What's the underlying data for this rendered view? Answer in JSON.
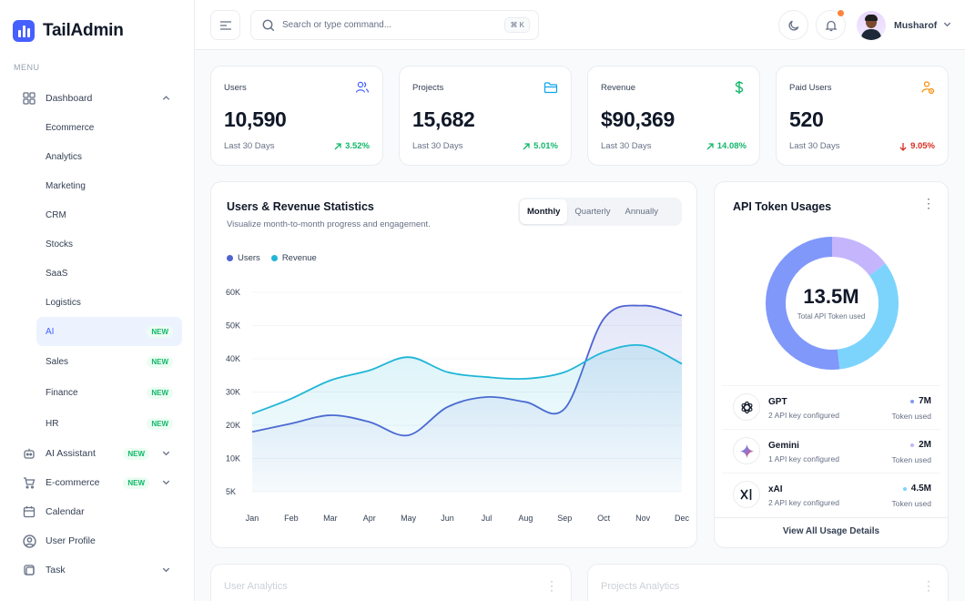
{
  "brand": {
    "name": "TailAdmin"
  },
  "sidebar": {
    "menu_label": "MENU",
    "dashboard": {
      "label": "Dashboard",
      "items": [
        {
          "label": "Ecommerce"
        },
        {
          "label": "Analytics"
        },
        {
          "label": "Marketing"
        },
        {
          "label": "CRM"
        },
        {
          "label": "Stocks"
        },
        {
          "label": "SaaS"
        },
        {
          "label": "Logistics"
        },
        {
          "label": "AI",
          "badge": "NEW",
          "active": true
        },
        {
          "label": "Sales",
          "badge": "NEW"
        },
        {
          "label": "Finance",
          "badge": "NEW"
        },
        {
          "label": "HR",
          "badge": "NEW"
        }
      ]
    },
    "items": [
      {
        "label": "AI Assistant",
        "badge": "NEW",
        "icon": "robot-icon"
      },
      {
        "label": "E-commerce",
        "badge": "NEW",
        "icon": "cart-icon"
      },
      {
        "label": "Calendar",
        "icon": "calendar-icon"
      },
      {
        "label": "User Profile",
        "icon": "user-circle-icon"
      },
      {
        "label": "Task",
        "icon": "task-icon"
      }
    ]
  },
  "header": {
    "search_placeholder": "Search or type command...",
    "shortcut": "⌘ K",
    "user_name": "Musharof"
  },
  "stats": [
    {
      "label": "Users",
      "value": "10,590",
      "period": "Last 30 Days",
      "change": "3.52%",
      "trend": "up",
      "icon": "users-icon",
      "color": "#465fff"
    },
    {
      "label": "Projects",
      "value": "15,682",
      "period": "Last 30 Days",
      "change": "5.01%",
      "trend": "up",
      "icon": "folder-icon",
      "color": "#0ba5ec"
    },
    {
      "label": "Revenue",
      "value": "$90,369",
      "period": "Last 30 Days",
      "change": "14.08%",
      "trend": "up",
      "icon": "dollar-icon",
      "color": "#12b76a"
    },
    {
      "label": "Paid Users",
      "value": "520",
      "period": "Last 30 Days",
      "change": "9.05%",
      "trend": "down",
      "icon": "paid-user-icon",
      "color": "#f79009"
    }
  ],
  "statistics": {
    "title": "Users & Revenue Statistics",
    "subtitle": "Visualize month-to-month progress and engagement.",
    "tabs": [
      "Monthly",
      "Quarterly",
      "Annually"
    ],
    "active_tab": "Monthly"
  },
  "chart_data": {
    "type": "area",
    "categories": [
      "Jan",
      "Feb",
      "Mar",
      "Apr",
      "May",
      "Jun",
      "Jul",
      "Aug",
      "Sep",
      "Oct",
      "Nov",
      "Dec"
    ],
    "series": [
      {
        "name": "Users",
        "color": "#4f63d2",
        "values": [
          18000,
          20500,
          23000,
          21000,
          17000,
          25500,
          28500,
          27000,
          25000,
          52000,
          56000,
          53000
        ]
      },
      {
        "name": "Revenue",
        "color": "#1fb6d6",
        "values": [
          23500,
          28000,
          33500,
          36500,
          40500,
          36000,
          34500,
          34000,
          36000,
          42000,
          44000,
          38500
        ]
      }
    ],
    "yticks": [
      "60K",
      "50K",
      "40K",
      "30K",
      "20K",
      "10K",
      "5K"
    ],
    "ylim": [
      0,
      60000
    ],
    "grid": true,
    "legend": "top-left"
  },
  "api": {
    "title": "API Token Usages",
    "total": "13.5M",
    "total_label": "Total API Token used",
    "donut": [
      {
        "name": "GPT",
        "value": 7,
        "color": "#8098f9"
      },
      {
        "name": "Gemini",
        "value": 2,
        "color": "#c4b5fd"
      },
      {
        "name": "xAI",
        "value": 4.5,
        "color": "#7cd4fd"
      }
    ],
    "rows": [
      {
        "name": "GPT",
        "desc": "2 API key configured",
        "amount": "7M",
        "unit": "Token used",
        "icon": "openai-icon",
        "dot": "#8098f9"
      },
      {
        "name": "Gemini",
        "desc": "1 API key configured",
        "amount": "2M",
        "unit": "Token used",
        "icon": "gemini-icon",
        "dot": "#c4b5fd"
      },
      {
        "name": "xAI",
        "desc": "2 API key configured",
        "amount": "4.5M",
        "unit": "Token used",
        "icon": "xai-icon",
        "dot": "#7cd4fd"
      }
    ],
    "footer": "View All Usage Details"
  },
  "bottom_cards": [
    {
      "title": "User Analytics"
    },
    {
      "title": "Projects Analytics"
    }
  ]
}
